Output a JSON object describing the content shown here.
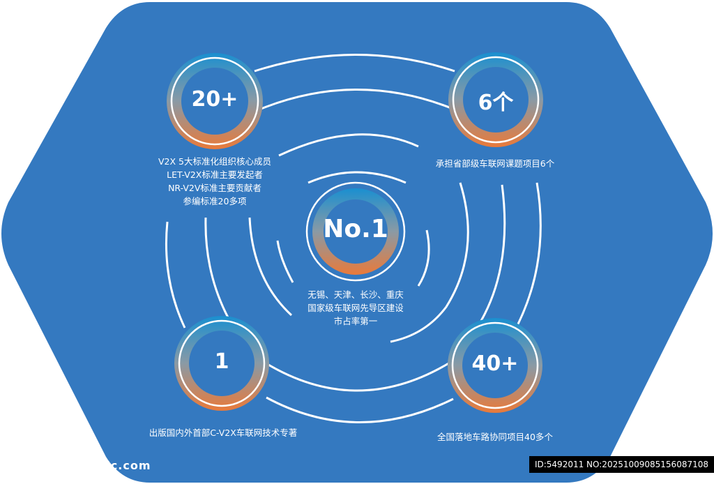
{
  "colors": {
    "background": "#3479c0",
    "ring_top": "#1a8fd0",
    "ring_bottom": "#e97a3a",
    "line": "#ffffff",
    "text": "#ffffff"
  },
  "badges": {
    "top_left": {
      "number": "20+"
    },
    "top_right": {
      "number": "6个"
    },
    "center": {
      "number": "No.1"
    },
    "bottom_left": {
      "number": "1"
    },
    "bottom_right": {
      "number": "40+"
    }
  },
  "captions": {
    "top_left": [
      "V2X 5大标准化组织核心成员",
      "LET-V2X标准主要发起者",
      "NR-V2V标准主要贡献者",
      "参编标准20多项"
    ],
    "top_right": [
      "承担省部级车联网课题项目6个"
    ],
    "center": [
      "无锡、天津、长沙、重庆",
      "国家级车联网先导区建设",
      "市占率第一"
    ],
    "bottom_left": [
      "出版国内外首部C-V2X车联网技术专著"
    ],
    "bottom_right": [
      "全国落地车路协同项目40多个"
    ]
  },
  "watermark": {
    "left": "昵图网 www.nipic.com",
    "right": "ID:5492011 NO:20251009085156087108"
  }
}
